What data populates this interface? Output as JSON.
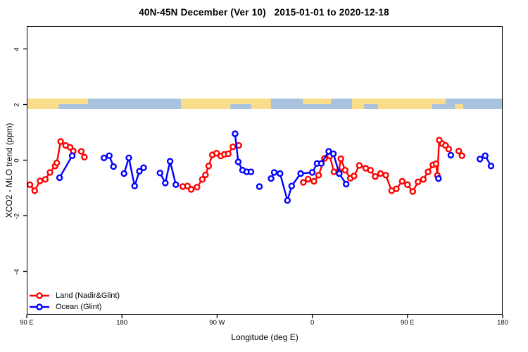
{
  "title": "40N-45N December (Ver 10)   2015-01-01 to 2020-12-18",
  "axes": {
    "xlabel": "Longitude (deg E)",
    "ylabel": "XCO2 - MLO trend (ppm)",
    "x_ticks": [
      {
        "value": 90,
        "label": "90 E"
      },
      {
        "value": 180,
        "label": "180"
      },
      {
        "value": 270,
        "label": "90 W"
      },
      {
        "value": 360,
        "label": "0"
      },
      {
        "value": 450,
        "label": "90 E"
      },
      {
        "value": 540,
        "label": "180"
      }
    ],
    "y_ticks": [
      {
        "value": -4,
        "label": "-4"
      },
      {
        "value": -2,
        "label": "-2"
      },
      {
        "value": 0,
        "label": "0"
      },
      {
        "value": 2,
        "label": "2"
      },
      {
        "value": 4,
        "label": "4"
      }
    ]
  },
  "legend": {
    "entries": [
      {
        "label": "Land (Nadir&Glint)",
        "color": "#ff0000"
      },
      {
        "label": "Ocean (Glint)",
        "color": "#0000ff"
      }
    ]
  },
  "surface_band": {
    "description": "land/ocean surface-type strip drawn at y = 2 ppm",
    "land_color": "#fadd8a",
    "ocean_color": "#a9c2e0",
    "land_segments_full": [
      [
        0.0,
        0.088
      ],
      [
        0.324,
        0.513
      ],
      [
        0.683,
        0.852
      ]
    ],
    "land_segments_top_half": [
      [
        0.088,
        0.129
      ],
      [
        0.58,
        0.639
      ],
      [
        0.852,
        0.88
      ]
    ],
    "land_patches_bottom_half": [
      [
        0.9,
        0.917
      ]
    ],
    "ocean_patches_bottom_half": [
      [
        0.067,
        0.092
      ],
      [
        0.428,
        0.472
      ],
      [
        0.709,
        0.738
      ]
    ]
  },
  "chart_data": {
    "type": "line",
    "title": "40N-45N December (Ver 10)   2015-01-01 to 2020-12-18",
    "xlabel": "Longitude (deg E)",
    "ylabel": "XCO2 - MLO trend (ppm)",
    "xlim": [
      90,
      540
    ],
    "ylim": [
      -5.5,
      4.85
    ],
    "grid": false,
    "legend_position": "bottom-left",
    "marker": "open-circle",
    "series": [
      {
        "name": "Land (Nadir&Glint)",
        "color": "#ff0000",
        "segments": [
          [
            [
              93.0,
              -0.88
            ],
            [
              97.5,
              -1.1
            ],
            [
              102.5,
              -0.75
            ],
            [
              107.5,
              -0.69
            ],
            [
              112.0,
              -0.44
            ],
            [
              116.8,
              -0.21
            ],
            [
              118.4,
              -0.1
            ],
            [
              122.0,
              0.67
            ],
            [
              126.8,
              0.53
            ],
            [
              131.0,
              0.46
            ],
            [
              134.0,
              0.33
            ]
          ],
          [
            [
              141.5,
              0.32
            ],
            [
              144.5,
              0.11
            ]
          ],
          [
            [
              237.5,
              -0.95
            ],
            [
              242.0,
              -0.93
            ],
            [
              245.5,
              -1.05
            ],
            [
              251.0,
              -0.97
            ],
            [
              256.0,
              -0.69
            ],
            [
              259.0,
              -0.53
            ],
            [
              262.0,
              -0.21
            ],
            [
              265.5,
              0.19
            ],
            [
              269.5,
              0.25
            ],
            [
              273.5,
              0.15
            ],
            [
              277.0,
              0.21
            ],
            [
              280.5,
              0.23
            ],
            [
              285.0,
              0.48
            ],
            [
              290.5,
              0.53
            ]
          ],
          [
            [
              351.5,
              -0.8
            ],
            [
              356.0,
              -0.68
            ],
            [
              361.5,
              -0.76
            ],
            [
              366.0,
              -0.54
            ],
            [
              371.5,
              0.06
            ],
            [
              376.5,
              0.15
            ],
            [
              380.5,
              -0.42
            ],
            [
              385.0,
              -0.4
            ],
            [
              387.0,
              0.05
            ],
            [
              391.0,
              -0.36
            ],
            [
              396.0,
              -0.65
            ],
            [
              399.5,
              -0.57
            ],
            [
              404.5,
              -0.19
            ],
            [
              410.5,
              -0.29
            ],
            [
              415.0,
              -0.36
            ],
            [
              419.5,
              -0.59
            ],
            [
              424.5,
              -0.48
            ],
            [
              429.5,
              -0.54
            ],
            [
              435.0,
              -1.1
            ],
            [
              439.5,
              -1.03
            ],
            [
              445.0,
              -0.76
            ],
            [
              450.0,
              -0.88
            ],
            [
              455.0,
              -1.13
            ],
            [
              460.0,
              -0.78
            ],
            [
              465.0,
              -0.69
            ],
            [
              469.5,
              -0.42
            ],
            [
              474.0,
              -0.17
            ],
            [
              477.0,
              -0.13
            ],
            [
              478.2,
              -0.55
            ],
            [
              480.0,
              0.72
            ],
            [
              483.0,
              0.59
            ],
            [
              486.0,
              0.53
            ],
            [
              489.0,
              0.4
            ]
          ],
          [
            [
              498.5,
              0.33
            ],
            [
              501.5,
              0.16
            ]
          ]
        ]
      },
      {
        "name": "Ocean (Glint)",
        "color": "#0000ff",
        "segments": [
          [
            [
              121.0,
              -0.63
            ],
            [
              133.0,
              0.16
            ]
          ],
          [
            [
              163.0,
              0.08
            ],
            [
              168.0,
              0.16
            ],
            [
              172.0,
              -0.23
            ]
          ],
          [
            [
              182.0,
              -0.48
            ],
            [
              186.5,
              0.08
            ],
            [
              192.0,
              -0.93
            ],
            [
              196.5,
              -0.4
            ],
            [
              200.5,
              -0.27
            ]
          ],
          [
            [
              216.0,
              -0.46
            ],
            [
              221.0,
              -0.82
            ],
            [
              225.5,
              -0.04
            ],
            [
              231.0,
              -0.88
            ]
          ],
          [
            [
              287.0,
              0.95
            ],
            [
              290.0,
              -0.06
            ],
            [
              294.0,
              -0.36
            ],
            [
              298.0,
              -0.42
            ],
            [
              302.0,
              -0.42
            ]
          ],
          [
            [
              310.0,
              -0.95
            ]
          ],
          [
            [
              321.0,
              -0.66
            ],
            [
              324.0,
              -0.44
            ],
            [
              329.5,
              -0.48
            ],
            [
              336.5,
              -1.45
            ],
            [
              340.5,
              -0.93
            ],
            [
              349.0,
              -0.48
            ],
            [
              360.0,
              -0.44
            ],
            [
              364.5,
              -0.12
            ],
            [
              368.5,
              -0.12
            ],
            [
              375.5,
              0.32
            ],
            [
              380.0,
              0.23
            ],
            [
              385.5,
              -0.48
            ],
            [
              392.0,
              -0.86
            ]
          ],
          [
            [
              479.3,
              -0.66
            ]
          ],
          [
            [
              491.0,
              0.18
            ]
          ],
          [
            [
              518.5,
              0.04
            ],
            [
              523.5,
              0.16
            ],
            [
              529.0,
              -0.21
            ]
          ]
        ]
      }
    ]
  }
}
